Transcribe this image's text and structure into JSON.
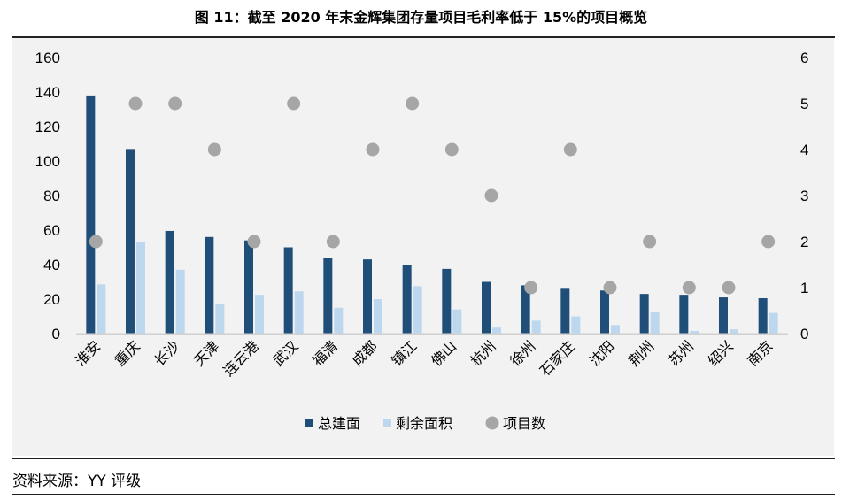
{
  "title": "图 11：截至 2020 年末金辉集团存量项目毛利率低于 15%的项目概览",
  "source": "资料来源：YY 评级",
  "chart_data": {
    "type": "bar",
    "categories": [
      "淮安",
      "重庆",
      "长沙",
      "天津",
      "连云港",
      "武汉",
      "福清",
      "成都",
      "镇江",
      "佛山",
      "杭州",
      "徐州",
      "石家庄",
      "沈阳",
      "荆州",
      "苏州",
      "绍兴",
      "南京"
    ],
    "series": [
      {
        "name": "总建面",
        "type": "bar",
        "axis": "left",
        "color": "#1f4e79",
        "values": [
          138,
          107,
          59.5,
          56,
          54,
          50,
          44,
          43,
          39.5,
          37.5,
          30,
          28,
          26,
          25,
          23,
          22.5,
          21,
          20.5
        ]
      },
      {
        "name": "剩余面积",
        "type": "bar",
        "axis": "left",
        "color": "#bdd7ee",
        "values": [
          28.5,
          53,
          37,
          17,
          22.5,
          24.5,
          15,
          20,
          27.5,
          14,
          3.5,
          7.5,
          10,
          5,
          12.5,
          1.5,
          2.5,
          12
        ]
      },
      {
        "name": "项目数",
        "type": "scatter",
        "axis": "right",
        "color": "#a6a6a6",
        "values": [
          2,
          5,
          5,
          4,
          2,
          5,
          2,
          4,
          5,
          4,
          3,
          1,
          4,
          1,
          2,
          1,
          1,
          2
        ]
      }
    ],
    "ylim_left": [
      0,
      160
    ],
    "yticks_left": [
      "0",
      "20",
      "40",
      "60",
      "80",
      "100",
      "120",
      "140",
      "160"
    ],
    "ylim_right": [
      0,
      6
    ],
    "yticks_right": [
      "0",
      "1",
      "2",
      "3",
      "4",
      "5",
      "6"
    ],
    "grid": false,
    "legend": "bottom"
  }
}
